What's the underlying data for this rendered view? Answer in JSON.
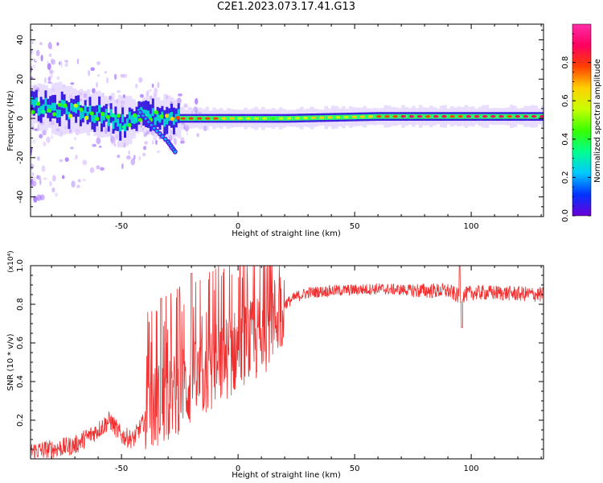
{
  "title": "C2E1.2023.073.17.41.G13",
  "chart_data": [
    {
      "type": "heatmap",
      "xlabel": "Height of straight line (km)",
      "ylabel": "Frequency (Hz)",
      "xlim": [
        -89,
        131
      ],
      "ylim": [
        -50,
        48
      ],
      "xticks": [
        -50,
        0,
        50,
        100
      ],
      "yticks": [
        -40,
        -20,
        0,
        20,
        40
      ],
      "colorbar": {
        "label": "Normalized spectral amplitude",
        "range": [
          0,
          1
        ],
        "ticks": [
          "0.0",
          "0.2",
          "0.4",
          "0.6",
          "0.8"
        ],
        "colormap": [
          "#6a00d6",
          "#0033ff",
          "#00c8ff",
          "#00ff90",
          "#37ff00",
          "#c8ff00",
          "#ffd000",
          "#ff4000",
          "#ff0060",
          "#ff2da6"
        ]
      },
      "ridge": [
        {
          "x": -88,
          "f": 6,
          "amp": 0.4
        },
        {
          "x": -80,
          "f": 5,
          "amp": 0.45
        },
        {
          "x": -70,
          "f": 4,
          "amp": 0.5
        },
        {
          "x": -60,
          "f": 2,
          "amp": 0.45
        },
        {
          "x": -50,
          "f": -2,
          "amp": 0.4
        },
        {
          "x": -40,
          "f": 2,
          "amp": 0.45
        },
        {
          "x": -32,
          "f": 0,
          "amp": 0.5
        },
        {
          "x": -25,
          "f": 0,
          "amp": 0.85
        },
        {
          "x": -10,
          "f": 0,
          "amp": 0.8
        },
        {
          "x": 0,
          "f": 0,
          "amp": 0.6
        },
        {
          "x": 20,
          "f": 0,
          "amp": 0.55
        },
        {
          "x": 40,
          "f": 0.5,
          "amp": 0.6
        },
        {
          "x": 60,
          "f": 1,
          "amp": 0.7
        },
        {
          "x": 80,
          "f": 1,
          "amp": 0.85
        },
        {
          "x": 100,
          "f": 1,
          "amp": 0.85
        },
        {
          "x": 131,
          "f": 1,
          "amp": 0.85
        }
      ],
      "side_branch": [
        {
          "x": -42,
          "f": 3
        },
        {
          "x": -36,
          "f": -5
        },
        {
          "x": -30,
          "f": -12
        },
        {
          "x": -27,
          "f": -17
        }
      ]
    },
    {
      "type": "line",
      "xlabel": "Height of straight line (km)",
      "ylabel": "SNR (10 * v/v)",
      "y_multiplier": "(x10⁴)",
      "xlim": [
        -89,
        131
      ],
      "ylim": [
        0,
        1.0
      ],
      "xticks": [
        -50,
        0,
        50,
        100
      ],
      "yticks": [
        0.2,
        0.4,
        0.6,
        0.8,
        1.0
      ],
      "color": "#f03030",
      "series": [
        {
          "x": [
            -89,
            -80,
            -70,
            -60,
            -55,
            -50,
            -45,
            -40,
            -35,
            -30,
            -25,
            -20,
            -15,
            -10,
            -5,
            0,
            5,
            10,
            15,
            20,
            25,
            30,
            40,
            50,
            60,
            70,
            80,
            90,
            95,
            100,
            110,
            120,
            131
          ],
          "y": [
            0.04,
            0.05,
            0.07,
            0.15,
            0.2,
            0.12,
            0.1,
            0.2,
            0.28,
            0.3,
            0.35,
            0.38,
            0.42,
            0.48,
            0.52,
            0.57,
            0.6,
            0.63,
            0.72,
            0.8,
            0.84,
            0.86,
            0.87,
            0.875,
            0.88,
            0.875,
            0.87,
            0.87,
            0.84,
            0.86,
            0.86,
            0.855,
            0.85
          ]
        }
      ],
      "peaks": [
        {
          "x": -33,
          "y": 0.83
        },
        {
          "x": -20,
          "y": 0.96
        },
        {
          "x": 95,
          "y": 1.0
        },
        {
          "x": 96,
          "y": 0.68
        }
      ]
    }
  ]
}
